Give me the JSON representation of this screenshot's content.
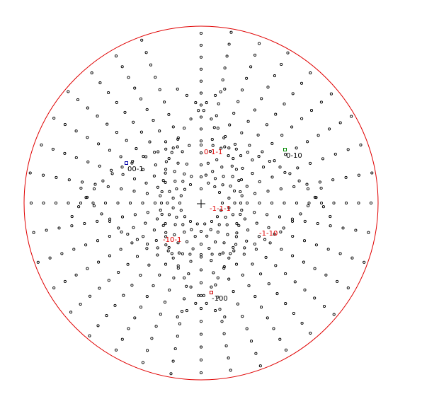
{
  "colors": {
    "circle": "#e00000",
    "dot": "#000000",
    "label_major": "#000000",
    "label_minor": "#e00000",
    "pole_001": "#0000aa",
    "pole_010": "#008800",
    "pole_100": "#cc0000"
  },
  "center_marker": "cross",
  "labels": {
    "pole_00m1": "00-1",
    "pole_0m10": "0-10",
    "pole_m100": "-100",
    "pole_0m1m1": "0-1-1",
    "pole_m1m1m1": "-1-1-1",
    "pole_m1m10": "-1-10",
    "pole_m10m1": "-10-1"
  }
}
